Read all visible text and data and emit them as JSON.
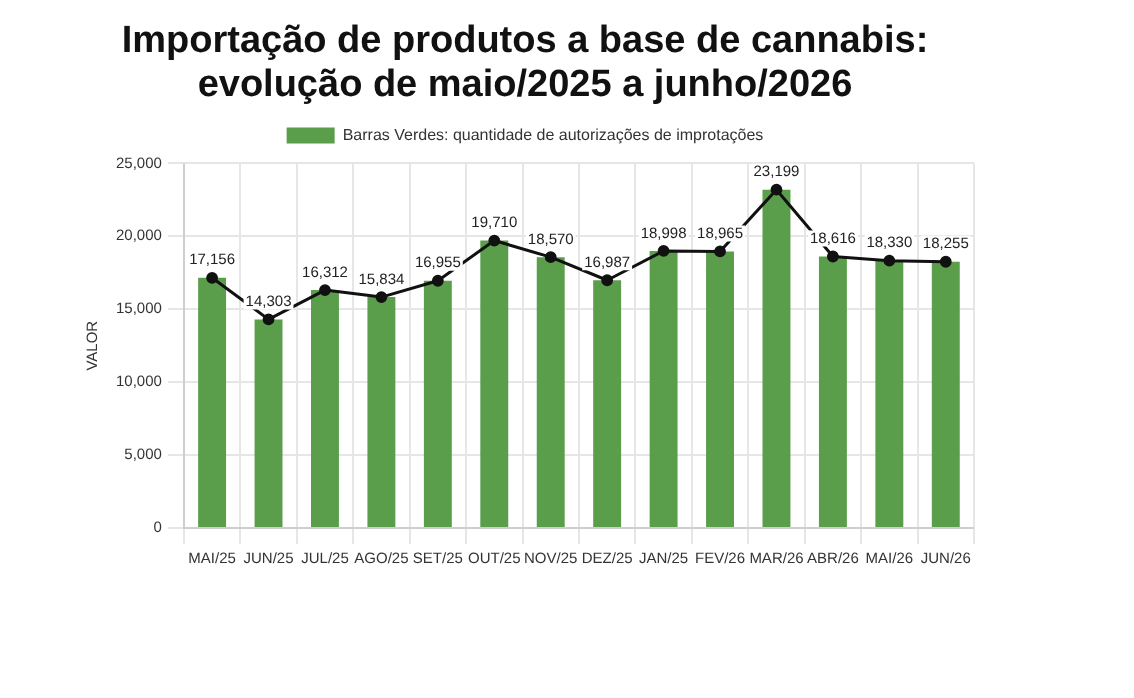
{
  "chart_data": {
    "type": "bar",
    "title": "Importação de produtos a base de cannabis: evolução de maio/2025 a junho/2026",
    "ylabel": "VALOR",
    "categories": [
      "MAI/25",
      "JUN/25",
      "JUL/25",
      "AGO/25",
      "SET/25",
      "OUT/25",
      "NOV/25",
      "DEZ/25",
      "JAN/25",
      "FEV/26",
      "MAR/26",
      "ABR/26",
      "MAI/26",
      "JUN/26"
    ],
    "series": [
      {
        "name": "Barras Verdes: quantidade de autorizações de improtações",
        "color": "#5a9e4b",
        "values": [
          17156,
          14303,
          16312,
          15834,
          16955,
          19710,
          18570,
          16987,
          18998,
          18965,
          23199,
          18616,
          18330,
          18255
        ]
      },
      {
        "type": "line",
        "color": "#111111",
        "values": [
          17156,
          14303,
          16312,
          15834,
          16955,
          19710,
          18570,
          16987,
          18998,
          18965,
          23199,
          18616,
          18330,
          18255
        ],
        "value_labels": [
          "17,156",
          "14,303",
          "16,312",
          "15,834",
          "16,955",
          "19,710",
          "18,570",
          "16,987",
          "18,998",
          "18,965",
          "23,199",
          "18,616",
          "18,330",
          "18,255"
        ]
      }
    ],
    "ylim": [
      0,
      25000
    ],
    "yticks": [
      0,
      {
        "value": 5000,
        "label": "5,000"
      },
      {
        "value": 10000,
        "label": "10,000"
      },
      {
        "value": 15000,
        "label": "15,000"
      },
      {
        "value": 20000,
        "label": "20,000"
      },
      {
        "value": 25000,
        "label": "25,000"
      }
    ],
    "grid": true,
    "legend": "top",
    "marker": "circle"
  }
}
